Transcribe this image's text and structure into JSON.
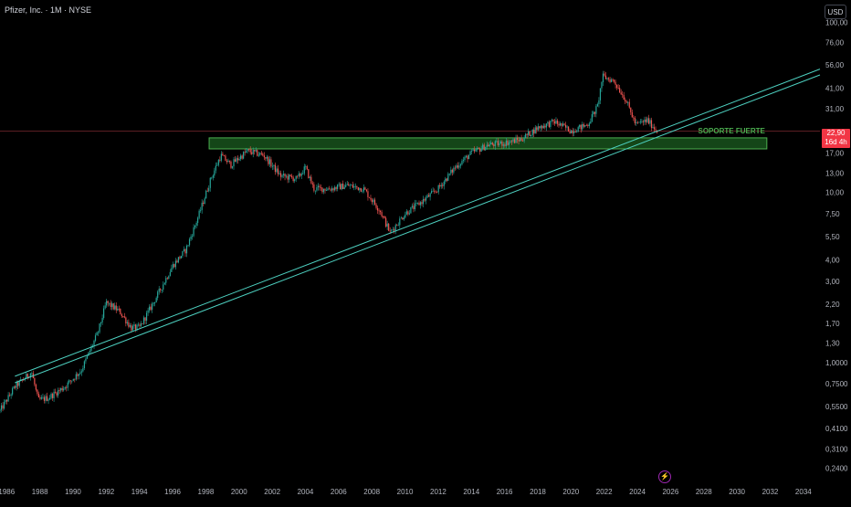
{
  "header": {
    "title": "Pfizer, Inc. · 1M · NYSE"
  },
  "currency": "USD",
  "last_price": {
    "value": "22,90",
    "countdown": "16d 4h"
  },
  "colors": {
    "background": "#000000",
    "candle_up": "#26a69a",
    "candle_down": "#ef5350",
    "trendline": "#4dd0c0",
    "zone_fill": "#1b5e20",
    "zone_border": "#4caf50",
    "zone_label": "#4caf50",
    "price_badge": "#f23645"
  },
  "icons": {
    "currency": "usd-button",
    "bottom": "lightning-icon"
  },
  "chart_data": {
    "type": "candlestick",
    "scale": "log",
    "x_range": [
      1985.6,
      2035.0
    ],
    "y_range": [
      0.2,
      135
    ],
    "y_tick_labels": [
      "100,00",
      "76,00",
      "56,00",
      "41,00",
      "31,00",
      "17,00",
      "13,00",
      "10,00",
      "7,50",
      "5,50",
      "4,00",
      "3,00",
      "2,20",
      "1,70",
      "1,30",
      "1,0000",
      "0,7500",
      "0,5500",
      "0,4100",
      "0,3100",
      "0,2400"
    ],
    "x_tick_labels": [
      "1986",
      "1988",
      "1990",
      "1992",
      "1994",
      "1996",
      "1998",
      "2000",
      "2002",
      "2004",
      "2006",
      "2008",
      "2010",
      "2012",
      "2014",
      "2016",
      "2018",
      "2020",
      "2022",
      "2024",
      "2026",
      "2028",
      "2030",
      "2032",
      "2034"
    ],
    "last_price": 22.9,
    "price_path": [
      [
        1985.6,
        0.52
      ],
      [
        1986.5,
        0.72
      ],
      [
        1987.5,
        0.88
      ],
      [
        1987.9,
        0.6
      ],
      [
        1988.5,
        0.62
      ],
      [
        1989.5,
        0.72
      ],
      [
        1990.5,
        0.9
      ],
      [
        1991.5,
        1.5
      ],
      [
        1992.0,
        2.25
      ],
      [
        1992.8,
        2.0
      ],
      [
        1993.5,
        1.6
      ],
      [
        1994.0,
        1.6
      ],
      [
        1995.0,
        2.4
      ],
      [
        1996.0,
        3.7
      ],
      [
        1996.8,
        4.6
      ],
      [
        1997.5,
        7.0
      ],
      [
        1998.3,
        12.0
      ],
      [
        1998.9,
        16.5
      ],
      [
        1999.5,
        14.5
      ],
      [
        2000.5,
        17.5
      ],
      [
        2001.5,
        16.5
      ],
      [
        2002.5,
        12.5
      ],
      [
        2003.5,
        12.0
      ],
      [
        2004.0,
        14.0
      ],
      [
        2004.5,
        10.5
      ],
      [
        2005.5,
        10.5
      ],
      [
        2006.5,
        11.0
      ],
      [
        2007.5,
        10.5
      ],
      [
        2008.5,
        7.8
      ],
      [
        2009.1,
        5.8
      ],
      [
        2010.0,
        7.5
      ],
      [
        2011.0,
        8.8
      ],
      [
        2012.0,
        10.5
      ],
      [
        2013.0,
        14.0
      ],
      [
        2014.0,
        17.0
      ],
      [
        2015.0,
        19.0
      ],
      [
        2016.0,
        19.5
      ],
      [
        2017.0,
        20.5
      ],
      [
        2018.0,
        24.0
      ],
      [
        2019.0,
        26.0
      ],
      [
        2020.0,
        23.0
      ],
      [
        2021.0,
        25.0
      ],
      [
        2021.6,
        32.0
      ],
      [
        2021.9,
        48.0
      ],
      [
        2022.6,
        45.0
      ],
      [
        2023.3,
        35.0
      ],
      [
        2023.9,
        25.0
      ],
      [
        2024.6,
        26.5
      ],
      [
        2025.2,
        22.9
      ]
    ],
    "trendlines": [
      {
        "from": [
          1986.5,
          0.83
        ],
        "to": [
          2035.0,
          53.0
        ]
      },
      {
        "from": [
          1986.5,
          0.76
        ],
        "to": [
          2035.0,
          49.0
        ]
      }
    ],
    "horizontal_line": {
      "value": 22.9
    },
    "support_zone": {
      "x_range": [
        1998.2,
        2031.8
      ],
      "y_range": [
        18.0,
        20.9
      ],
      "label": "SOPORTE FUERTE"
    }
  }
}
